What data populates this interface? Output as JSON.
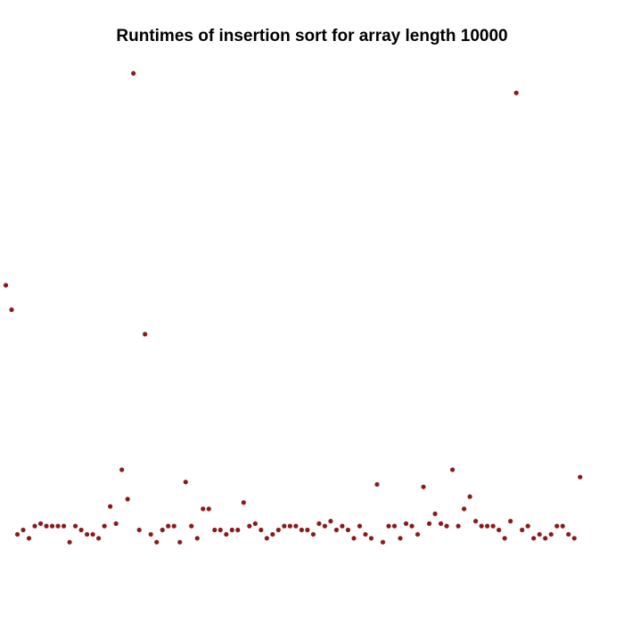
{
  "chart_data": {
    "type": "scatter",
    "title": "Runtimes of insertion sort for array length 10000",
    "xlabel": "",
    "ylabel": "",
    "x_axis_visible": false,
    "y_axis_visible": false,
    "grid": false,
    "legend": "none",
    "xlim": [
      0.5,
      101
    ],
    "ylim": [
      0,
      100
    ],
    "point_color": "#8B1A1A",
    "series": [
      {
        "values": [
          54.7,
          49.7,
          3.8,
          4.7,
          3.0,
          5.5,
          6.0,
          5.5,
          5.5,
          5.5,
          5.5,
          2.2,
          5.5,
          4.7,
          3.8,
          3.8,
          3.0,
          5.5,
          9.5,
          6.0,
          17.0,
          11.0,
          98.0,
          4.7,
          44.7,
          3.8,
          2.2,
          4.7,
          5.5,
          5.5,
          2.2,
          14.5,
          5.5,
          3.0,
          9.0,
          9.0,
          4.7,
          4.7,
          3.8,
          4.7,
          4.7,
          10.3,
          5.5,
          6.0,
          4.7,
          3.0,
          3.8,
          4.7,
          5.5,
          5.5,
          5.5,
          4.7,
          4.7,
          3.8,
          6.0,
          5.5,
          6.5,
          4.7,
          5.5,
          4.7,
          3.0,
          5.5,
          3.8,
          3.0,
          14.0,
          2.2,
          5.5,
          5.5,
          3.0,
          6.0,
          5.5,
          3.8,
          13.5,
          6.0,
          8.0,
          6.0,
          5.5,
          17.0,
          5.5,
          9.0,
          11.5,
          6.5,
          5.5,
          5.5,
          5.5,
          4.7,
          3.0,
          6.5,
          94.0,
          4.7,
          5.5,
          3.0,
          3.8,
          3.0,
          3.8,
          5.5,
          5.5,
          3.8,
          3.0,
          15.5
        ]
      }
    ]
  }
}
